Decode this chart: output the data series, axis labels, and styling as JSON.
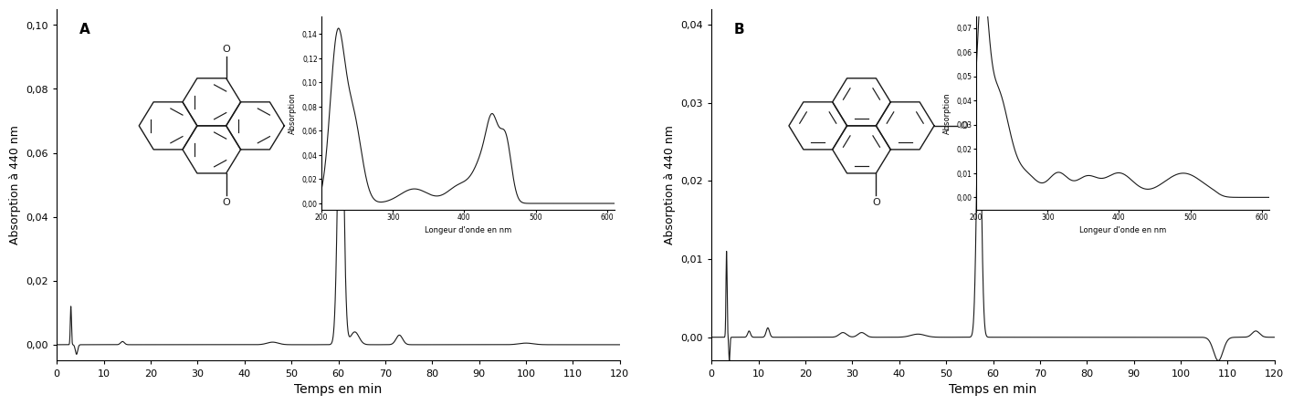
{
  "panel_A": {
    "label": "A",
    "ylabel": "Absorption à 440 nm",
    "xlabel": "Temps en min",
    "xlim": [
      0,
      120
    ],
    "ylim": [
      -0.005,
      0.105
    ],
    "yticks": [
      0.0,
      0.02,
      0.04,
      0.06,
      0.08,
      0.1
    ],
    "ytick_labels": [
      "0,00",
      "0,02",
      "0,04",
      "0,06",
      "0,08",
      "0,10"
    ],
    "xticks": [
      0,
      10,
      20,
      30,
      40,
      50,
      60,
      70,
      80,
      90,
      100,
      110,
      120
    ],
    "inset": {
      "xlim": [
        200,
        610
      ],
      "ylim": [
        -0.005,
        0.155
      ],
      "yticks": [
        0.0,
        0.02,
        0.04,
        0.06,
        0.08,
        0.1,
        0.12,
        0.14
      ],
      "ytick_labels": [
        "0,00",
        "0,02",
        "0,04",
        "0,06",
        "0,08",
        "0,10",
        "0,12",
        "0,14"
      ],
      "xticks": [
        200,
        300,
        400,
        500,
        600
      ],
      "xlabel": "Longeur d'onde en nm",
      "ylabel": "Absorption"
    }
  },
  "panel_B": {
    "label": "B",
    "ylabel": "Absorption à 440 nm",
    "xlabel": "Temps en min",
    "xlim": [
      0,
      120
    ],
    "ylim": [
      -0.003,
      0.042
    ],
    "yticks": [
      0.0,
      0.01,
      0.02,
      0.03,
      0.04
    ],
    "ytick_labels": [
      "0,00",
      "0,01",
      "0,02",
      "0,03",
      "0,04"
    ],
    "xticks": [
      0,
      10,
      20,
      30,
      40,
      50,
      60,
      70,
      80,
      90,
      100,
      110,
      120
    ],
    "inset": {
      "xlim": [
        200,
        610
      ],
      "ylim": [
        -0.005,
        0.075
      ],
      "yticks": [
        0.0,
        0.01,
        0.02,
        0.03,
        0.04,
        0.05,
        0.06,
        0.07
      ],
      "ytick_labels": [
        "0,00",
        "0,01",
        "0,02",
        "0,03",
        "0,04",
        "0,05",
        "0,06",
        "0,07"
      ],
      "xticks": [
        200,
        300,
        400,
        500,
        600
      ],
      "xlabel": "Longeur d'onde en nm",
      "ylabel": "Absorption"
    }
  },
  "line_color": "#1a1a1a",
  "bg_color": "#ffffff",
  "font_size_tick": 8,
  "font_size_label": 9,
  "font_size_panel_label": 11
}
